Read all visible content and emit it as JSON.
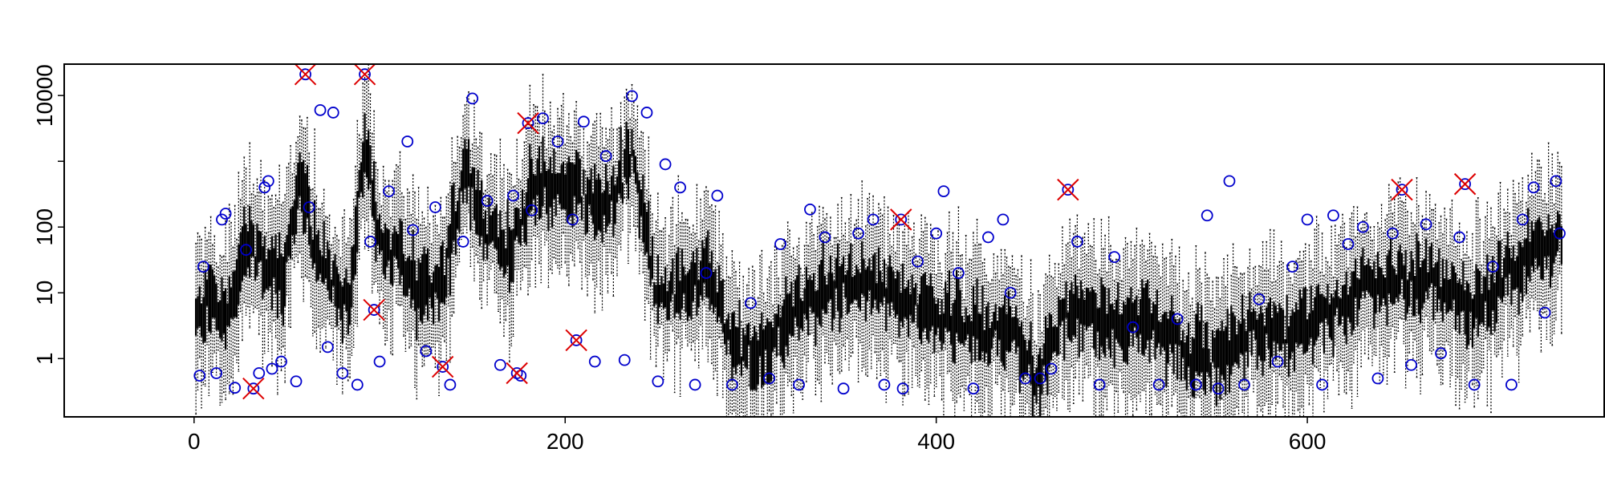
{
  "chart_data": {
    "type": "boxplot",
    "title": "",
    "xlabel": "",
    "ylabel": "",
    "xlim": [
      -70,
      760
    ],
    "ylim": [
      0.13,
      30000
    ],
    "y_scale": "log",
    "grid": false,
    "legend": "none",
    "x_ticks": [
      {
        "value": 0,
        "label": "0"
      },
      {
        "value": 200,
        "label": "200"
      },
      {
        "value": 400,
        "label": "400"
      },
      {
        "value": 600,
        "label": "600"
      }
    ],
    "y_ticks": [
      {
        "value": 1,
        "label": "1"
      },
      {
        "value": 10,
        "label": "10"
      },
      {
        "value": 100,
        "label": "100"
      },
      {
        "value": 1000,
        "label": ""
      },
      {
        "value": 10000,
        "label": "10000"
      }
    ],
    "n_boxes": 737,
    "median_profile": {
      "x": [
        0,
        8,
        18,
        28,
        38,
        48,
        58,
        66,
        76,
        84,
        92,
        100,
        110,
        122,
        134,
        146,
        158,
        170,
        182,
        196,
        210,
        224,
        236,
        248,
        262,
        276,
        290,
        304,
        320,
        336,
        352,
        368,
        384,
        400,
        420,
        440,
        456,
        470,
        490,
        510,
        530,
        550,
        570,
        590,
        610,
        630,
        650,
        670,
        690,
        710,
        736
      ],
      "y": [
        3,
        8,
        4,
        60,
        25,
        15,
        600,
        30,
        12,
        6,
        2500,
        60,
        35,
        8,
        12,
        800,
        80,
        40,
        350,
        400,
        300,
        200,
        1200,
        15,
        8,
        20,
        1.5,
        1.2,
        4,
        8,
        15,
        12,
        6,
        5,
        3,
        2,
        0.5,
        5,
        3,
        4,
        1.5,
        0.8,
        3,
        2,
        4,
        12,
        15,
        15,
        5,
        20,
        60
      ]
    },
    "outliers_circle": [
      {
        "x": 3,
        "y": 0.55
      },
      {
        "x": 5,
        "y": 25
      },
      {
        "x": 12,
        "y": 0.6
      },
      {
        "x": 15,
        "y": 130
      },
      {
        "x": 17,
        "y": 160
      },
      {
        "x": 22,
        "y": 0.36
      },
      {
        "x": 28,
        "y": 45
      },
      {
        "x": 35,
        "y": 0.6
      },
      {
        "x": 38,
        "y": 400
      },
      {
        "x": 40,
        "y": 500
      },
      {
        "x": 42,
        "y": 0.7
      },
      {
        "x": 47,
        "y": 0.9
      },
      {
        "x": 55,
        "y": 0.45
      },
      {
        "x": 62,
        "y": 200
      },
      {
        "x": 68,
        "y": 6000
      },
      {
        "x": 72,
        "y": 1.5
      },
      {
        "x": 75,
        "y": 5500
      },
      {
        "x": 80,
        "y": 0.6
      },
      {
        "x": 88,
        "y": 0.4
      },
      {
        "x": 95,
        "y": 60
      },
      {
        "x": 100,
        "y": 0.9
      },
      {
        "x": 105,
        "y": 350
      },
      {
        "x": 115,
        "y": 2000
      },
      {
        "x": 118,
        "y": 90
      },
      {
        "x": 125,
        "y": 1.3
      },
      {
        "x": 130,
        "y": 200
      },
      {
        "x": 138,
        "y": 0.4
      },
      {
        "x": 145,
        "y": 60
      },
      {
        "x": 150,
        "y": 9000
      },
      {
        "x": 158,
        "y": 250
      },
      {
        "x": 165,
        "y": 0.8
      },
      {
        "x": 172,
        "y": 300
      },
      {
        "x": 176,
        "y": 0.55
      },
      {
        "x": 182,
        "y": 180
      },
      {
        "x": 188,
        "y": 4500
      },
      {
        "x": 196,
        "y": 2000
      },
      {
        "x": 204,
        "y": 130
      },
      {
        "x": 210,
        "y": 4000
      },
      {
        "x": 216,
        "y": 0.9
      },
      {
        "x": 222,
        "y": 1200
      },
      {
        "x": 232,
        "y": 0.95
      },
      {
        "x": 236,
        "y": 9800
      },
      {
        "x": 244,
        "y": 5500
      },
      {
        "x": 250,
        "y": 0.45
      },
      {
        "x": 254,
        "y": 900
      },
      {
        "x": 262,
        "y": 400
      },
      {
        "x": 270,
        "y": 0.4
      },
      {
        "x": 276,
        "y": 20
      },
      {
        "x": 282,
        "y": 300
      },
      {
        "x": 290,
        "y": 0.4
      },
      {
        "x": 300,
        "y": 7
      },
      {
        "x": 310,
        "y": 0.5
      },
      {
        "x": 316,
        "y": 55
      },
      {
        "x": 326,
        "y": 0.4
      },
      {
        "x": 332,
        "y": 185
      },
      {
        "x": 340,
        "y": 70
      },
      {
        "x": 350,
        "y": 0.35
      },
      {
        "x": 358,
        "y": 80
      },
      {
        "x": 366,
        "y": 130
      },
      {
        "x": 372,
        "y": 0.4
      },
      {
        "x": 382,
        "y": 0.35
      },
      {
        "x": 390,
        "y": 30
      },
      {
        "x": 400,
        "y": 80
      },
      {
        "x": 404,
        "y": 350
      },
      {
        "x": 412,
        "y": 20
      },
      {
        "x": 420,
        "y": 0.35
      },
      {
        "x": 428,
        "y": 70
      },
      {
        "x": 436,
        "y": 130
      },
      {
        "x": 440,
        "y": 10
      },
      {
        "x": 448,
        "y": 0.5
      },
      {
        "x": 456,
        "y": 0.5
      },
      {
        "x": 462,
        "y": 0.7
      },
      {
        "x": 476,
        "y": 60
      },
      {
        "x": 488,
        "y": 0.4
      },
      {
        "x": 496,
        "y": 35
      },
      {
        "x": 506,
        "y": 3
      },
      {
        "x": 520,
        "y": 0.4
      },
      {
        "x": 530,
        "y": 4
      },
      {
        "x": 540,
        "y": 0.4
      },
      {
        "x": 546,
        "y": 150
      },
      {
        "x": 552,
        "y": 0.35
      },
      {
        "x": 558,
        "y": 500
      },
      {
        "x": 566,
        "y": 0.4
      },
      {
        "x": 574,
        "y": 8
      },
      {
        "x": 584,
        "y": 0.9
      },
      {
        "x": 592,
        "y": 25
      },
      {
        "x": 600,
        "y": 130
      },
      {
        "x": 608,
        "y": 0.4
      },
      {
        "x": 614,
        "y": 150
      },
      {
        "x": 622,
        "y": 55
      },
      {
        "x": 630,
        "y": 100
      },
      {
        "x": 638,
        "y": 0.5
      },
      {
        "x": 646,
        "y": 80
      },
      {
        "x": 656,
        "y": 0.8
      },
      {
        "x": 664,
        "y": 110
      },
      {
        "x": 672,
        "y": 1.2
      },
      {
        "x": 682,
        "y": 70
      },
      {
        "x": 690,
        "y": 0.4
      },
      {
        "x": 700,
        "y": 25
      },
      {
        "x": 710,
        "y": 0.4
      },
      {
        "x": 716,
        "y": 130
      },
      {
        "x": 722,
        "y": 400
      },
      {
        "x": 728,
        "y": 5
      },
      {
        "x": 734,
        "y": 500
      },
      {
        "x": 736,
        "y": 80
      }
    ],
    "outliers_cross": [
      {
        "x": 32,
        "y": 0.35
      },
      {
        "x": 60,
        "y": 21000
      },
      {
        "x": 92,
        "y": 21000
      },
      {
        "x": 97,
        "y": 5.5
      },
      {
        "x": 134,
        "y": 0.75
      },
      {
        "x": 174,
        "y": 0.6
      },
      {
        "x": 180,
        "y": 3800
      },
      {
        "x": 206,
        "y": 1.9
      },
      {
        "x": 381,
        "y": 130
      },
      {
        "x": 471,
        "y": 370
      },
      {
        "x": 651,
        "y": 370
      },
      {
        "x": 685,
        "y": 450
      }
    ],
    "colors": {
      "box": "#000000",
      "whisker": "#000000",
      "outlier_circle": "#0000cc",
      "outlier_cross": "#dd0000",
      "frame": "#000000"
    }
  }
}
